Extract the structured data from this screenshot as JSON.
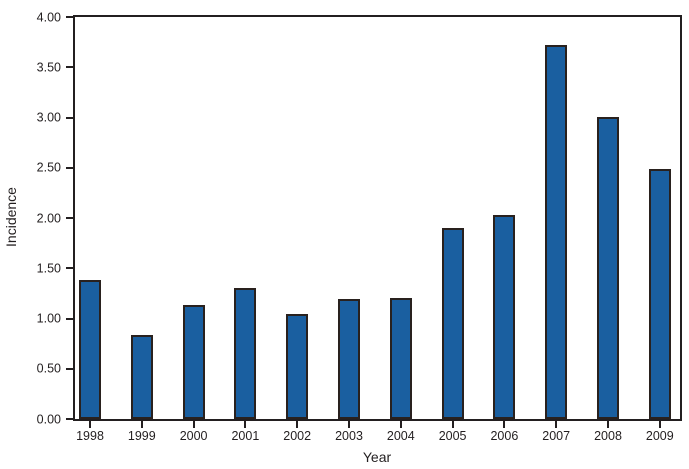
{
  "chart_data": {
    "type": "bar",
    "xlabel": "Year",
    "ylabel": "Incidence",
    "categories": [
      "1998",
      "1999",
      "2000",
      "2001",
      "2002",
      "2003",
      "2004",
      "2005",
      "2006",
      "2007",
      "2008",
      "2009"
    ],
    "values": [
      1.38,
      0.84,
      1.13,
      1.3,
      1.04,
      1.19,
      1.2,
      1.9,
      2.03,
      3.72,
      3.01,
      2.49
    ],
    "ylim": [
      0.0,
      4.0
    ],
    "yticks": [
      0.0,
      0.5,
      1.0,
      1.5,
      2.0,
      2.5,
      3.0,
      3.5,
      4.0
    ],
    "ytick_labels": [
      "0.00",
      "0.50",
      "1.00",
      "1.50",
      "2.00",
      "2.50",
      "3.00",
      "3.50",
      "4.00"
    ],
    "grid": false,
    "legend_position": "none",
    "frame": "full-box",
    "colors": {
      "bar_fill": "#1a5fa0",
      "bar_outline": "#29211e",
      "axis": "#231f20",
      "text": "#231f20",
      "background": "#ffffff"
    }
  }
}
